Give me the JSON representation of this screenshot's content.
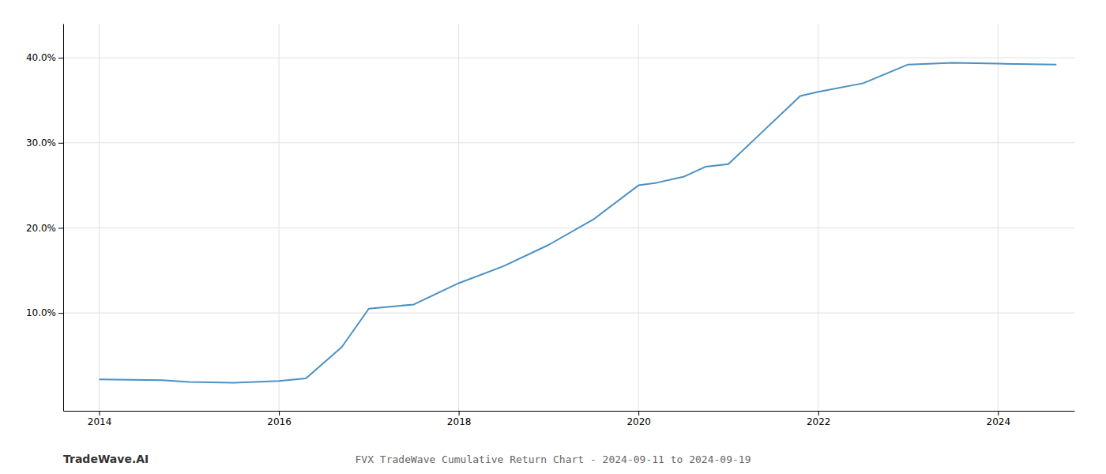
{
  "chart_data": {
    "type": "line",
    "title": "FVX TradeWave Cumulative Return Chart - 2024-09-11 to 2024-09-19",
    "annotations": [
      "TradeWave.AI"
    ],
    "x": [
      2014.0,
      2014.7,
      2015.0,
      2015.5,
      2016.0,
      2016.3,
      2016.7,
      2017.0,
      2017.5,
      2018.0,
      2018.5,
      2019.0,
      2019.5,
      2020.0,
      2020.2,
      2020.5,
      2020.75,
      2021.0,
      2021.3,
      2021.8,
      2022.0,
      2022.5,
      2023.0,
      2023.5,
      2024.0,
      2024.65
    ],
    "values": [
      2.2,
      2.1,
      1.9,
      1.8,
      2.0,
      2.3,
      6.0,
      10.5,
      11.0,
      13.5,
      15.5,
      18.0,
      21.0,
      25.0,
      25.3,
      26.0,
      27.2,
      27.5,
      30.5,
      35.5,
      36.0,
      37.0,
      39.2,
      39.4,
      39.3,
      39.2
    ],
    "color": "#4a90c4",
    "xlim": [
      2013.6,
      2024.85
    ],
    "ylim": [
      -1.5,
      44
    ],
    "xticks": [
      2014,
      2016,
      2018,
      2020,
      2022,
      2024
    ],
    "yticks": [
      {
        "value": 10,
        "label": "10.0%"
      },
      {
        "value": 20,
        "label": "20.0%"
      },
      {
        "value": 30,
        "label": "30.0%"
      },
      {
        "value": 40,
        "label": "40.0%"
      }
    ],
    "grid": true
  }
}
